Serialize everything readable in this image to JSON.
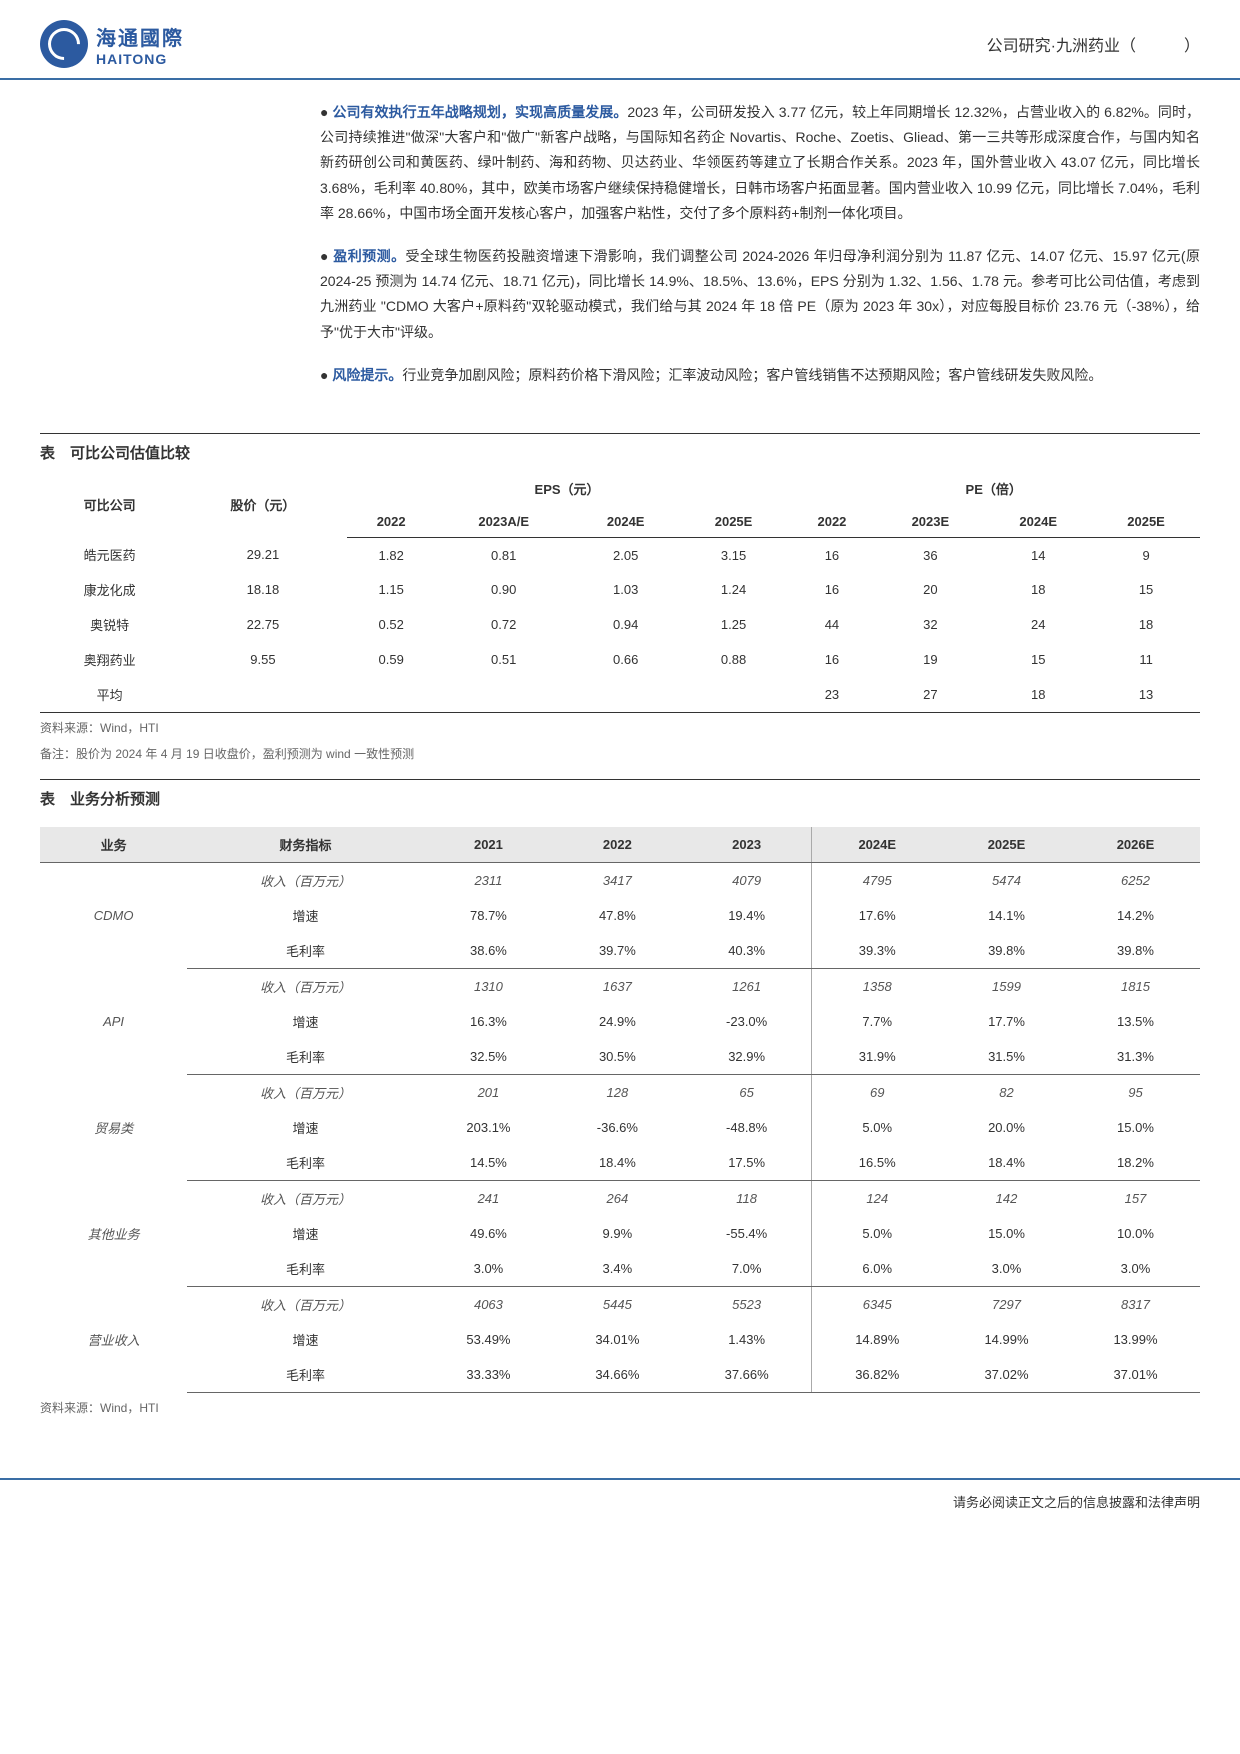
{
  "header": {
    "logo_cn": "海通國際",
    "logo_en": "HAITONG",
    "right_text": "公司研究·九洲药业（　　　）"
  },
  "bullets": [
    {
      "title": "公司有效执行五年战略规划，实现高质量发展。",
      "body": "2023 年，公司研发投入 3.77 亿元，较上年同期增长 12.32%，占营业收入的 6.82%。同时，公司持续推进\"做深\"大客户和\"做广\"新客户战略，与国际知名药企 Novartis、Roche、Zoetis、Gliead、第一三共等形成深度合作，与国内知名新药研创公司和黄医药、绿叶制药、海和药物、贝达药业、华领医药等建立了长期合作关系。2023 年，国外营业收入 43.07 亿元，同比增长 3.68%，毛利率 40.80%，其中，欧美市场客户继续保持稳健增长，日韩市场客户拓面显著。国内营业收入 10.99 亿元，同比增长 7.04%，毛利率 28.66%，中国市场全面开发核心客户，加强客户粘性，交付了多个原料药+制剂一体化项目。"
    },
    {
      "title": "盈利预测。",
      "body": "受全球生物医药投融资增速下滑影响，我们调整公司 2024-2026 年归母净利润分别为 11.87 亿元、14.07 亿元、15.97 亿元(原 2024-25 预测为 14.74 亿元、18.71 亿元)，同比增长 14.9%、18.5%、13.6%，EPS 分别为 1.32、1.56、1.78 元。参考可比公司估值，考虑到九洲药业 \"CDMO 大客户+原料药\"双轮驱动模式，我们给与其 2024 年 18 倍 PE（原为 2023 年 30x），对应每股目标价 23.76 元（-38%），给予\"优于大市\"评级。"
    },
    {
      "title": "风险提示。",
      "body": "行业竞争加剧风险；原料药价格下滑风险；汇率波动风险；客户管线销售不达预期风险；客户管线研发失败风险。"
    }
  ],
  "table1": {
    "title": "表　可比公司估值比较",
    "headers": {
      "col1": "可比公司",
      "col2": "股价（元）",
      "eps": "EPS（元）",
      "pe": "PE（倍）",
      "y2022": "2022",
      "y2023ae": "2023A/E",
      "y2024e": "2024E",
      "y2025e": "2025E",
      "p2022": "2022",
      "p2023e": "2023E",
      "p2024e": "2024E",
      "p2025e": "2025E"
    },
    "rows": [
      {
        "name": "皓元医药",
        "price": "29.21",
        "eps": [
          "1.82",
          "0.81",
          "2.05",
          "3.15"
        ],
        "pe": [
          "16",
          "36",
          "14",
          "9"
        ]
      },
      {
        "name": "康龙化成",
        "price": "18.18",
        "eps": [
          "1.15",
          "0.90",
          "1.03",
          "1.24"
        ],
        "pe": [
          "16",
          "20",
          "18",
          "15"
        ]
      },
      {
        "name": "奥锐特",
        "price": "22.75",
        "eps": [
          "0.52",
          "0.72",
          "0.94",
          "1.25"
        ],
        "pe": [
          "44",
          "32",
          "24",
          "18"
        ]
      },
      {
        "name": "奥翔药业",
        "price": "9.55",
        "eps": [
          "0.59",
          "0.51",
          "0.66",
          "0.88"
        ],
        "pe": [
          "16",
          "19",
          "15",
          "11"
        ]
      },
      {
        "name": "平均",
        "price": "",
        "eps": [
          "",
          "",
          "",
          ""
        ],
        "pe": [
          "23",
          "27",
          "18",
          "13"
        ]
      }
    ],
    "note1": "资料来源：Wind，HTI",
    "note2": "备注：股价为 2024 年 4 月 19 日收盘价，盈利预测为 wind 一致性预测"
  },
  "table2": {
    "title": "表　业务分析预测",
    "headers": {
      "biz": "业务",
      "metric": "财务指标",
      "y2021": "2021",
      "y2022": "2022",
      "y2023": "2023",
      "y2024e": "2024E",
      "y2025e": "2025E",
      "y2026e": "2026E"
    },
    "metrics": {
      "rev": "收入（百万元）",
      "growth": "增速",
      "gm": "毛利率"
    },
    "groups": [
      {
        "biz": "CDMO",
        "rows": [
          [
            "2311",
            "3417",
            "4079",
            "4795",
            "5474",
            "6252"
          ],
          [
            "78.7%",
            "47.8%",
            "19.4%",
            "17.6%",
            "14.1%",
            "14.2%"
          ],
          [
            "38.6%",
            "39.7%",
            "40.3%",
            "39.3%",
            "39.8%",
            "39.8%"
          ]
        ]
      },
      {
        "biz": "API",
        "rows": [
          [
            "1310",
            "1637",
            "1261",
            "1358",
            "1599",
            "1815"
          ],
          [
            "16.3%",
            "24.9%",
            "-23.0%",
            "7.7%",
            "17.7%",
            "13.5%"
          ],
          [
            "32.5%",
            "30.5%",
            "32.9%",
            "31.9%",
            "31.5%",
            "31.3%"
          ]
        ]
      },
      {
        "biz": "贸易类",
        "rows": [
          [
            "201",
            "128",
            "65",
            "69",
            "82",
            "95"
          ],
          [
            "203.1%",
            "-36.6%",
            "-48.8%",
            "5.0%",
            "20.0%",
            "15.0%"
          ],
          [
            "14.5%",
            "18.4%",
            "17.5%",
            "16.5%",
            "18.4%",
            "18.2%"
          ]
        ]
      },
      {
        "biz": "其他业务",
        "rows": [
          [
            "241",
            "264",
            "118",
            "124",
            "142",
            "157"
          ],
          [
            "49.6%",
            "9.9%",
            "-55.4%",
            "5.0%",
            "15.0%",
            "10.0%"
          ],
          [
            "3.0%",
            "3.4%",
            "7.0%",
            "6.0%",
            "3.0%",
            "3.0%"
          ]
        ]
      },
      {
        "biz": "营业收入",
        "rows": [
          [
            "4063",
            "5445",
            "5523",
            "6345",
            "7297",
            "8317"
          ],
          [
            "53.49%",
            "34.01%",
            "1.43%",
            "14.89%",
            "14.99%",
            "13.99%"
          ],
          [
            "33.33%",
            "34.66%",
            "37.66%",
            "36.82%",
            "37.02%",
            "37.01%"
          ]
        ]
      }
    ],
    "note": "资料来源：Wind，HTI"
  },
  "footer": "请务必阅读正文之后的信息披露和法律声明"
}
